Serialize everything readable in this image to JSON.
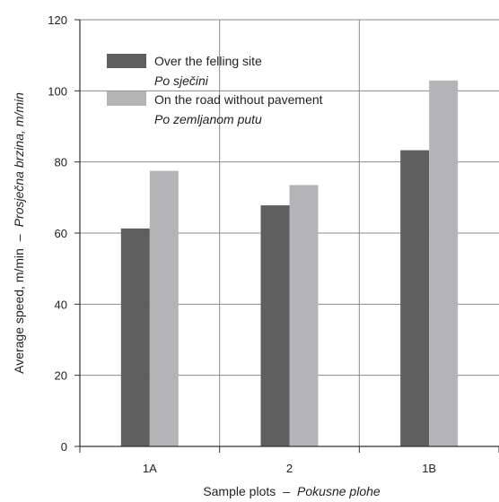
{
  "chart_data": {
    "type": "bar",
    "categories": [
      "1A",
      "2",
      "1B"
    ],
    "series": [
      {
        "name": "Over the felling site",
        "name_local": "Po sječini",
        "color": "#5f5f5f",
        "values": [
          61.3,
          67.8,
          83.3
        ]
      },
      {
        "name": "On the road without pavement",
        "name_local": "Po zemljanom putu",
        "color": "#b4b4b6",
        "values": [
          77.5,
          73.5,
          102.9
        ]
      }
    ],
    "xlabel": "Sample plots",
    "xlabel_local": "Pokusne plohe",
    "ylabel": "Average speed, m/min",
    "ylabel_local": "Prosječna brzina, m/min",
    "separator": "–",
    "ylim": [
      0,
      120
    ],
    "yticks": [
      0,
      20,
      40,
      60,
      80,
      100,
      120
    ],
    "grid": true,
    "legend_position": "top-left"
  }
}
